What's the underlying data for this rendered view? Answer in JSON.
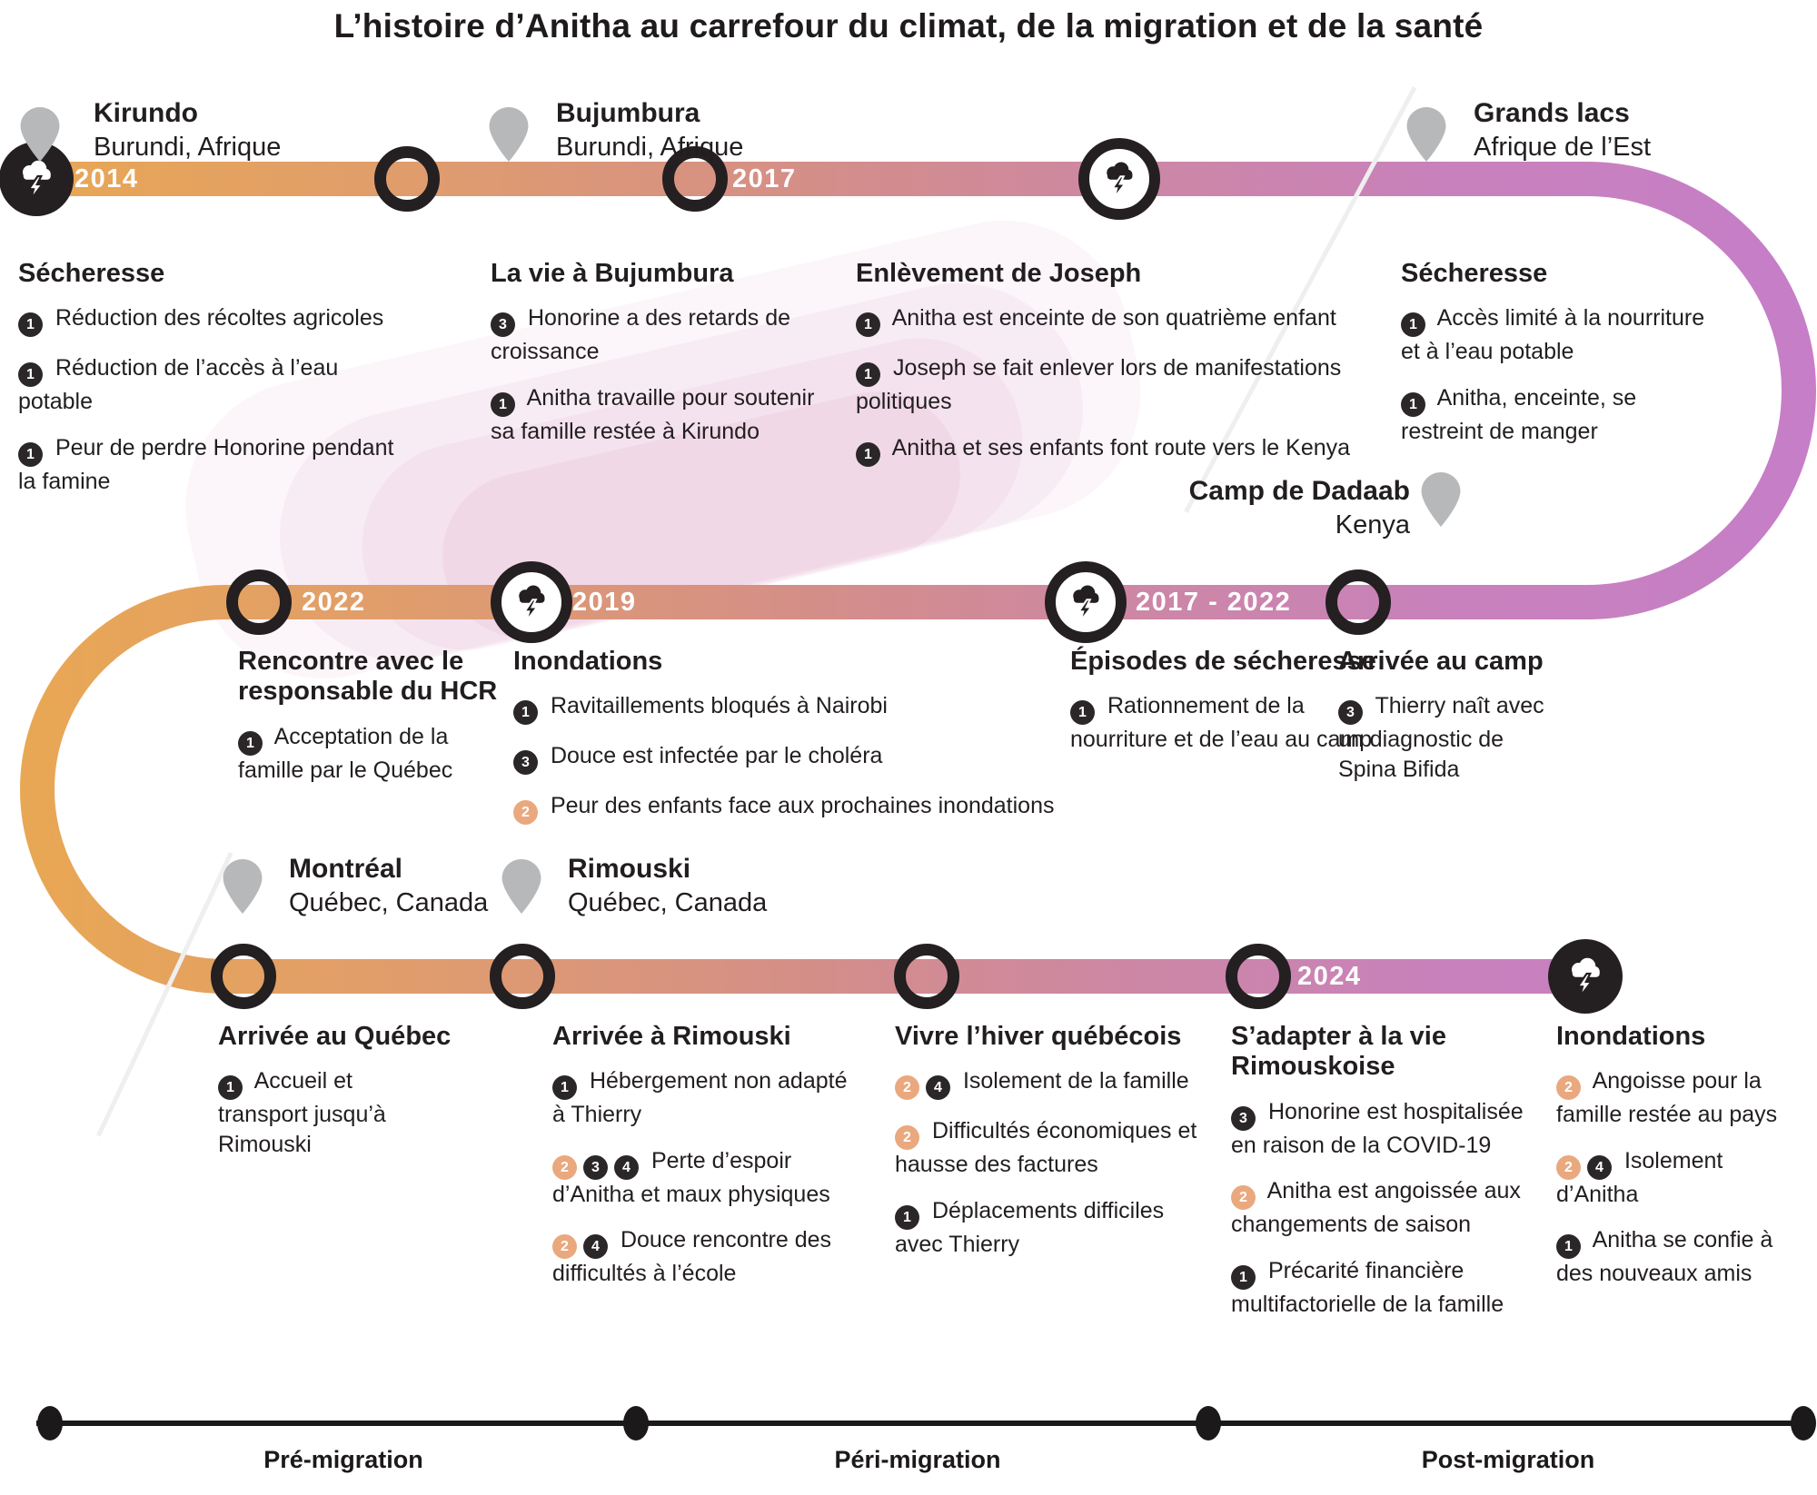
{
  "title": "L’histoire d’Anitha au carrefour du climat, de la migration et de la santé",
  "locations": [
    {
      "name": "Kirundo",
      "region": "Burundi, Afrique"
    },
    {
      "name": "Bujumbura",
      "region": "Burundi, Afrique"
    },
    {
      "name": "Grands lacs",
      "region": "Afrique de l’Est"
    },
    {
      "name": "Camp de Dadaab",
      "region": "Kenya"
    },
    {
      "name": "Montréal",
      "region": "Québec, Canada"
    },
    {
      "name": "Rimouski",
      "region": "Québec, Canada"
    }
  ],
  "events": [
    {
      "id": "secheresse-2014",
      "year": "2014",
      "title": "Sécheresse",
      "items": [
        {
          "badges": [
            1
          ],
          "text": "Réduction des récoltes agricoles"
        },
        {
          "badges": [
            1
          ],
          "text": "Réduction de l’accès à l’eau potable"
        },
        {
          "badges": [
            1
          ],
          "text": "Peur de perdre Honorine pendant la famine"
        }
      ]
    },
    {
      "id": "vie-bujumbura",
      "title": "La vie à Bujumbura",
      "items": [
        {
          "badges": [
            3
          ],
          "text": "Honorine a des retards de croissance"
        },
        {
          "badges": [
            1
          ],
          "text": "Anitha travaille pour soutenir sa famille restée à Kirundo"
        }
      ]
    },
    {
      "id": "enlevement-joseph",
      "year": "2017",
      "title": "Enlèvement de Joseph",
      "items": [
        {
          "badges": [
            1
          ],
          "text": "Anitha est enceinte de son quatrième enfant"
        },
        {
          "badges": [
            1
          ],
          "text": "Joseph se fait enlever lors de manifestations politiques"
        },
        {
          "badges": [
            1
          ],
          "text": "Anitha et ses enfants font route vers le Kenya"
        }
      ]
    },
    {
      "id": "secheresse-grands-lacs",
      "title": "Sécheresse",
      "items": [
        {
          "badges": [
            1
          ],
          "text": "Accès limité à la nourriture et à l’eau potable"
        },
        {
          "badges": [
            1
          ],
          "text": "Anitha, enceinte, se restreint de manger"
        }
      ]
    },
    {
      "id": "rencontre-hcr",
      "year": "2022",
      "title": "Rencontre avec le responsable du HCR",
      "items": [
        {
          "badges": [
            1
          ],
          "text": "Acceptation de la famille par le Québec"
        }
      ]
    },
    {
      "id": "inondations-2019",
      "year": "2019",
      "title": "Inondations",
      "items": [
        {
          "badges": [
            1
          ],
          "text": "Ravitaillements bloqués à Nairobi"
        },
        {
          "badges": [
            3
          ],
          "text": "Douce est infectée par le choléra"
        },
        {
          "badges": [
            2
          ],
          "text": "Peur des enfants face aux prochaines inondations"
        }
      ]
    },
    {
      "id": "episodes-secheresse",
      "year": "2017 - 2022",
      "title": "Épisodes de sécheresse",
      "items": [
        {
          "badges": [
            1
          ],
          "text": "Rationnement de la nourriture et de l’eau au camp"
        }
      ]
    },
    {
      "id": "arrivee-camp",
      "title": "Arrivée au camp",
      "items": [
        {
          "badges": [
            3
          ],
          "text": "Thierry naît avec un diagnostic de Spina Bifida"
        }
      ]
    },
    {
      "id": "arrivee-quebec",
      "title": "Arrivée au Québec",
      "items": [
        {
          "badges": [
            1
          ],
          "text": "Accueil et transport jusqu’à Rimouski"
        }
      ]
    },
    {
      "id": "arrivee-rimouski",
      "title": "Arrivée à Rimouski",
      "items": [
        {
          "badges": [
            1
          ],
          "text": "Hébergement non adapté à Thierry"
        },
        {
          "badges": [
            2,
            3,
            4
          ],
          "text": "Perte d’espoir d’Anitha et maux physiques"
        },
        {
          "badges": [
            2,
            4
          ],
          "text": "Douce rencontre des difficultés à l’école"
        }
      ]
    },
    {
      "id": "hiver-quebecois",
      "title": "Vivre l’hiver québécois",
      "items": [
        {
          "badges": [
            2,
            4
          ],
          "text": "Isolement de la famille"
        },
        {
          "badges": [
            2
          ],
          "text": "Difficultés économiques et hausse des factures"
        },
        {
          "badges": [
            1
          ],
          "text": "Déplacements difficiles avec Thierry"
        }
      ]
    },
    {
      "id": "adaptation-rimouskoise",
      "year": "2024",
      "title": "S’adapter à la vie Rimouskoise",
      "items": [
        {
          "badges": [
            3
          ],
          "text": "Honorine est hospitalisée en raison de la COVID-19"
        },
        {
          "badges": [
            2
          ],
          "text": "Anitha est angoissée aux changements de saison"
        },
        {
          "badges": [
            1
          ],
          "text": "Précarité financière multifactorielle de la famille"
        }
      ]
    },
    {
      "id": "inondations-rimouski",
      "title": "Inondations",
      "items": [
        {
          "badges": [
            2
          ],
          "text": "Angoisse pour la famille restée au pays"
        },
        {
          "badges": [
            2,
            4
          ],
          "text": "Isolement d’Anitha"
        },
        {
          "badges": [
            1
          ],
          "text": "Anitha se confie à des nouveaux amis"
        }
      ]
    }
  ],
  "axis": {
    "phases": [
      "Pré-migration",
      "Péri-migration",
      "Post-migration"
    ]
  },
  "colors": {
    "band_start": "#e9a852",
    "band_mid": "#d48e89",
    "band_end": "#c67ec8",
    "badge_dark": "#2b2728",
    "badge_highlight": "#eaa87f",
    "pin_gray": "#b7b8ba",
    "year_text": "#ffffff"
  }
}
